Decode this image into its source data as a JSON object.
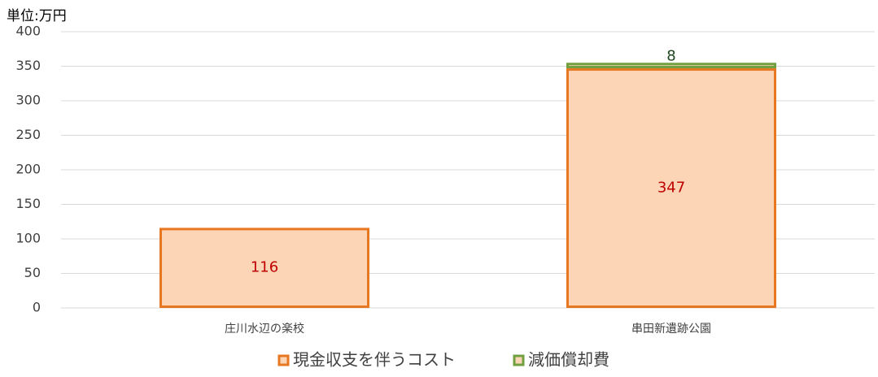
{
  "chart_data": {
    "type": "stacked_bar",
    "unit_label": "単位:万円",
    "categories": [
      "庄川水辺の楽校",
      "串田新遺跡公園"
    ],
    "series": [
      {
        "name": "現金収支を伴うコスト",
        "color": "#e87722",
        "fill": "#fbd5b5",
        "label_color": "#c00000",
        "values": [
          116,
          347
        ]
      },
      {
        "name": "減価償却費",
        "color": "#70a040",
        "fill": "#fbd5b5",
        "label_color": "#1e4620",
        "values": [
          null,
          8
        ]
      }
    ],
    "ylim": [
      0,
      400
    ],
    "yticks": [
      0,
      50,
      100,
      150,
      200,
      250,
      300,
      350,
      400
    ],
    "grid": true
  }
}
